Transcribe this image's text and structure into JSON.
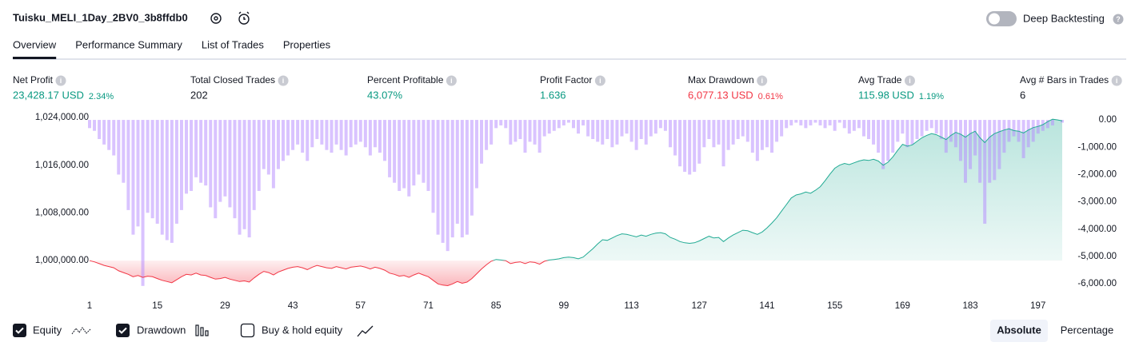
{
  "header": {
    "title": "Tuisku_MELI_1Day_2BV0_3b8ffdb0",
    "toggle_label": "Deep Backtesting"
  },
  "tabs": [
    "Overview",
    "Performance Summary",
    "List of Trades",
    "Properties"
  ],
  "metrics": [
    {
      "label": "Net Profit",
      "value": "23,428.17 USD",
      "pct": "2.34%",
      "tone": "up"
    },
    {
      "label": "Total Closed Trades",
      "value": "202",
      "tone": "plain"
    },
    {
      "label": "Percent Profitable",
      "value": "43.07%",
      "tone": "up"
    },
    {
      "label": "Profit Factor",
      "value": "1.636",
      "tone": "up"
    },
    {
      "label": "Max Drawdown",
      "value": "6,077.13 USD",
      "pct": "0.61%",
      "tone": "down"
    },
    {
      "label": "Avg Trade",
      "value": "115.98 USD",
      "pct": "1.19%",
      "tone": "up"
    },
    {
      "label": "Avg # Bars in Trades",
      "value": "6",
      "tone": "plain"
    }
  ],
  "chart_data": {
    "type": "combo",
    "baseline": 1000000,
    "x": [
      1,
      2,
      3,
      4,
      5,
      6,
      7,
      8,
      9,
      10,
      11,
      12,
      13,
      14,
      15,
      16,
      17,
      18,
      19,
      20,
      21,
      22,
      23,
      24,
      25,
      26,
      27,
      28,
      29,
      30,
      31,
      32,
      33,
      34,
      35,
      36,
      37,
      38,
      39,
      40,
      41,
      42,
      43,
      44,
      45,
      46,
      47,
      48,
      49,
      50,
      51,
      52,
      53,
      54,
      55,
      56,
      57,
      58,
      59,
      60,
      61,
      62,
      63,
      64,
      65,
      66,
      67,
      68,
      69,
      70,
      71,
      72,
      73,
      74,
      75,
      76,
      77,
      78,
      79,
      80,
      81,
      82,
      83,
      84,
      85,
      86,
      87,
      88,
      89,
      90,
      91,
      92,
      93,
      94,
      95,
      96,
      97,
      98,
      99,
      100,
      101,
      102,
      103,
      104,
      105,
      106,
      107,
      108,
      109,
      110,
      111,
      112,
      113,
      114,
      115,
      116,
      117,
      118,
      119,
      120,
      121,
      122,
      123,
      124,
      125,
      126,
      127,
      128,
      129,
      130,
      131,
      132,
      133,
      134,
      135,
      136,
      137,
      138,
      139,
      140,
      141,
      142,
      143,
      144,
      145,
      146,
      147,
      148,
      149,
      150,
      151,
      152,
      153,
      154,
      155,
      156,
      157,
      158,
      159,
      160,
      161,
      162,
      163,
      164,
      165,
      166,
      167,
      168,
      169,
      170,
      171,
      172,
      173,
      174,
      175,
      176,
      177,
      178,
      179,
      180,
      181,
      182,
      183,
      184,
      185,
      186,
      187,
      188,
      189,
      190,
      191,
      192,
      193,
      194,
      195,
      196,
      197,
      198,
      199,
      200,
      201,
      202
    ],
    "xlim": [
      1,
      202
    ],
    "xticks": [
      1,
      15,
      29,
      43,
      57,
      71,
      85,
      99,
      113,
      127,
      141,
      155,
      169,
      183,
      197
    ],
    "ylim": [
      995200,
      1024000
    ],
    "yticks": [
      {
        "value": 1000000,
        "label": "1,000,000.00"
      },
      {
        "value": 1008000,
        "label": "1,008,000.00"
      },
      {
        "value": 1016000,
        "label": "1,016,000.00"
      },
      {
        "value": 1024000,
        "label": "1,024,000.00"
      }
    ],
    "y2lim": [
      -6200,
      90
    ],
    "y2ticks": [
      {
        "value": 0,
        "label": "0.00"
      },
      {
        "value": -1000,
        "label": "-1,000.00"
      },
      {
        "value": -2000,
        "label": "-2,000.00"
      },
      {
        "value": -3000,
        "label": "-3,000.00"
      },
      {
        "value": -4000,
        "label": "-4,000.00"
      },
      {
        "value": -5000,
        "label": "-5,000.00"
      },
      {
        "value": -6000,
        "label": "-6,000.00"
      }
    ],
    "series": [
      {
        "name": "Equity",
        "kind": "line",
        "axis": "y",
        "color_up": "#22ab94",
        "color_down": "#f23645",
        "checked": true,
        "values": [
          1000000,
          999800,
          999500,
          999200,
          999000,
          998800,
          998300,
          998000,
          997700,
          997300,
          997500,
          997200,
          997400,
          997300,
          997000,
          996700,
          996500,
          996300,
          996800,
          997300,
          997700,
          997600,
          997900,
          997600,
          997500,
          997200,
          996900,
          997000,
          997200,
          996900,
          996700,
          996500,
          996600,
          996400,
          997100,
          997700,
          998200,
          998000,
          997600,
          998100,
          998400,
          998700,
          998900,
          999000,
          998800,
          998500,
          998900,
          999200,
          999000,
          998800,
          998700,
          999000,
          998800,
          998600,
          998900,
          999000,
          999100,
          998900,
          998600,
          998900,
          998700,
          998400,
          997900,
          997700,
          997400,
          997500,
          997200,
          997600,
          997900,
          997600,
          997300,
          996700,
          996100,
          995900,
          995800,
          996100,
          996500,
          996200,
          996400,
          997000,
          997800,
          998600,
          999300,
          999900,
          1000200,
          1000100,
          1000000,
          999500,
          999700,
          999800,
          999500,
          999800,
          999700,
          999400,
          999900,
          1000100,
          1000200,
          1000300,
          1000500,
          1000600,
          1000500,
          1000300,
          1000600,
          1001300,
          1002000,
          1002800,
          1003500,
          1003400,
          1003800,
          1004200,
          1004500,
          1004400,
          1004200,
          1004000,
          1004300,
          1004100,
          1004400,
          1004600,
          1004700,
          1004500,
          1003900,
          1003600,
          1003200,
          1003000,
          1002900,
          1003000,
          1003300,
          1003700,
          1004100,
          1003800,
          1003900,
          1003200,
          1003800,
          1004300,
          1004700,
          1005100,
          1005000,
          1004700,
          1004400,
          1004800,
          1005500,
          1006300,
          1007200,
          1008300,
          1009400,
          1010500,
          1011000,
          1011200,
          1011500,
          1011300,
          1011800,
          1012400,
          1013400,
          1014500,
          1015500,
          1016000,
          1016300,
          1016100,
          1016400,
          1016700,
          1016900,
          1016800,
          1017000,
          1016700,
          1016000,
          1016500,
          1017400,
          1018500,
          1019500,
          1019200,
          1019400,
          1020000,
          1020600,
          1021000,
          1021300,
          1021100,
          1020700,
          1020300,
          1021000,
          1021500,
          1021200,
          1020700,
          1021300,
          1021700,
          1020600,
          1019800,
          1020700,
          1021300,
          1021600,
          1021900,
          1022100,
          1021800,
          1021700,
          1021400,
          1021900,
          1022300,
          1022500,
          1022800,
          1023300,
          1023700,
          1023600,
          1023428
        ]
      },
      {
        "name": "Drawdown",
        "kind": "bar",
        "axis": "y2",
        "color": "#b388ff",
        "checked": true,
        "values": [
          -300,
          -400,
          -700,
          -900,
          -1100,
          -1300,
          -2000,
          -2300,
          -3300,
          -4200,
          -3900,
          -6077,
          -3400,
          -3600,
          -3800,
          -4200,
          -4400,
          -4500,
          -3800,
          -3300,
          -2700,
          -2600,
          -2100,
          -2300,
          -2400,
          -3200,
          -3600,
          -3000,
          -2800,
          -3200,
          -3600,
          -4200,
          -4000,
          -4300,
          -3300,
          -2600,
          -1800,
          -2000,
          -2500,
          -1800,
          -1500,
          -1300,
          -1100,
          -900,
          -1200,
          -1500,
          -1000,
          -700,
          -900,
          -1100,
          -1200,
          -900,
          -1100,
          -1300,
          -1000,
          -900,
          -800,
          -1000,
          -1300,
          -1000,
          -1200,
          -1500,
          -2100,
          -2300,
          -2600,
          -2500,
          -2800,
          -2400,
          -2000,
          -2300,
          -2600,
          -3400,
          -4200,
          -4500,
          -4800,
          -4300,
          -3800,
          -4300,
          -4200,
          -3500,
          -2500,
          -1600,
          -1100,
          -900,
          -300,
          -200,
          -300,
          -900,
          -800,
          -700,
          -1200,
          -800,
          -900,
          -1200,
          -600,
          -500,
          -400,
          -300,
          -200,
          -100,
          -300,
          -500,
          -200,
          -600,
          -700,
          -800,
          -900,
          -700,
          -1000,
          -900,
          -600,
          -500,
          -800,
          -1100,
          -700,
          -900,
          -600,
          -500,
          -300,
          -400,
          -1000,
          -1300,
          -1700,
          -1900,
          -2000,
          -1900,
          -1600,
          -1000,
          -700,
          -1000,
          -900,
          -1700,
          -1100,
          -900,
          -700,
          -600,
          -800,
          -1200,
          -1500,
          -1100,
          -1000,
          -1200,
          -800,
          -600,
          -300,
          -200,
          -100,
          -200,
          -300,
          -200,
          -100,
          -200,
          -300,
          -200,
          -400,
          -100,
          -300,
          -500,
          -400,
          -300,
          -600,
          -700,
          -900,
          -1200,
          -1800,
          -1500,
          -1200,
          -800,
          -500,
          -1000,
          -900,
          -700,
          -600,
          -400,
          -300,
          -500,
          -700,
          -1200,
          -800,
          -1000,
          -1500,
          -2300,
          -1800,
          -1300,
          -2300,
          -3800,
          -2300,
          -2200,
          -1800,
          -1200,
          -800,
          -600,
          -800,
          -1400,
          -1000,
          -800,
          -500,
          -400,
          -300,
          -200,
          0,
          -100
        ]
      }
    ],
    "extra_legend": {
      "name": "Buy & hold equity",
      "checked": false
    }
  },
  "view_modes": [
    {
      "label": "Absolute",
      "active": true
    },
    {
      "label": "Percentage",
      "active": false
    }
  ]
}
